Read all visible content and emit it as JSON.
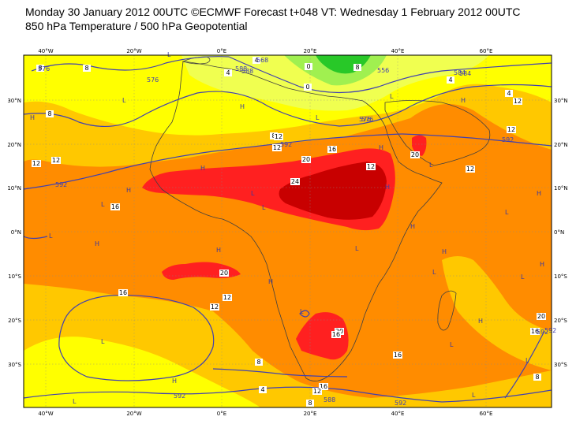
{
  "title_line1": "Monday 30 January 2012 00UTC ©ECMWF Forecast t+048 VT: Wednesday 1 February 2012 00UTC",
  "title_line2": "850 hPa Temperature / 500 hPa Geopotential",
  "x_ticks_top": [
    "40°W",
    "20°W",
    "0°E",
    "20°E",
    "40°E",
    "60°E"
  ],
  "x_ticks_bottom": [
    "40°W",
    "20°W",
    "0°E",
    "20°E",
    "40°E",
    "60°E"
  ],
  "y_ticks_left": [
    "30°N",
    "20°N",
    "10°N",
    "0°N",
    "10°S",
    "20°S",
    "30°S"
  ],
  "y_ticks_right": [
    "30°N",
    "20°N",
    "10°N",
    "0°N",
    "10°S",
    "20°S",
    "30°S"
  ],
  "colors": {
    "t_lt0": "#28c828",
    "t_0_4": "#a0f050",
    "t_4_8": "#f0ff50",
    "t_8_12": "#ffff00",
    "t_12_16": "#ffc800",
    "t_16_20": "#ff8c00",
    "t_20_24": "#ff2020",
    "t_gt24": "#c80000",
    "geopotential_contour": "#4040b0",
    "coastline": "#404040"
  },
  "contour_labels_temperature": [
    "8",
    "8",
    "4",
    "16",
    "12",
    "12",
    "12",
    "16",
    "20",
    "24",
    "20",
    "16",
    "20",
    "12",
    "12",
    "12",
    "20",
    "16",
    "20",
    "16",
    "12",
    "8",
    "8",
    "4",
    "8",
    "16",
    "12",
    "8",
    "4",
    "0",
    "0",
    "8",
    "12",
    "4",
    "8",
    "12",
    "16",
    "4",
    "12"
  ],
  "contour_labels_geopotential": [
    "576",
    "576",
    "588",
    "584",
    "568",
    "576",
    "592",
    "592",
    "592",
    "592",
    "592",
    "592",
    "588",
    "576",
    "556",
    "588",
    "584",
    "592"
  ],
  "pressure_markers": [
    "L",
    "H",
    "H",
    "L",
    "H",
    "L",
    "H",
    "H",
    "L",
    "H",
    "L",
    "L",
    "H",
    "L",
    "H",
    "L",
    "H",
    "L",
    "L",
    "H",
    "L",
    "H",
    "L",
    "L",
    "H",
    "L",
    "H",
    "L",
    "H",
    "L",
    "L",
    "H",
    "H",
    "L",
    "L"
  ]
}
